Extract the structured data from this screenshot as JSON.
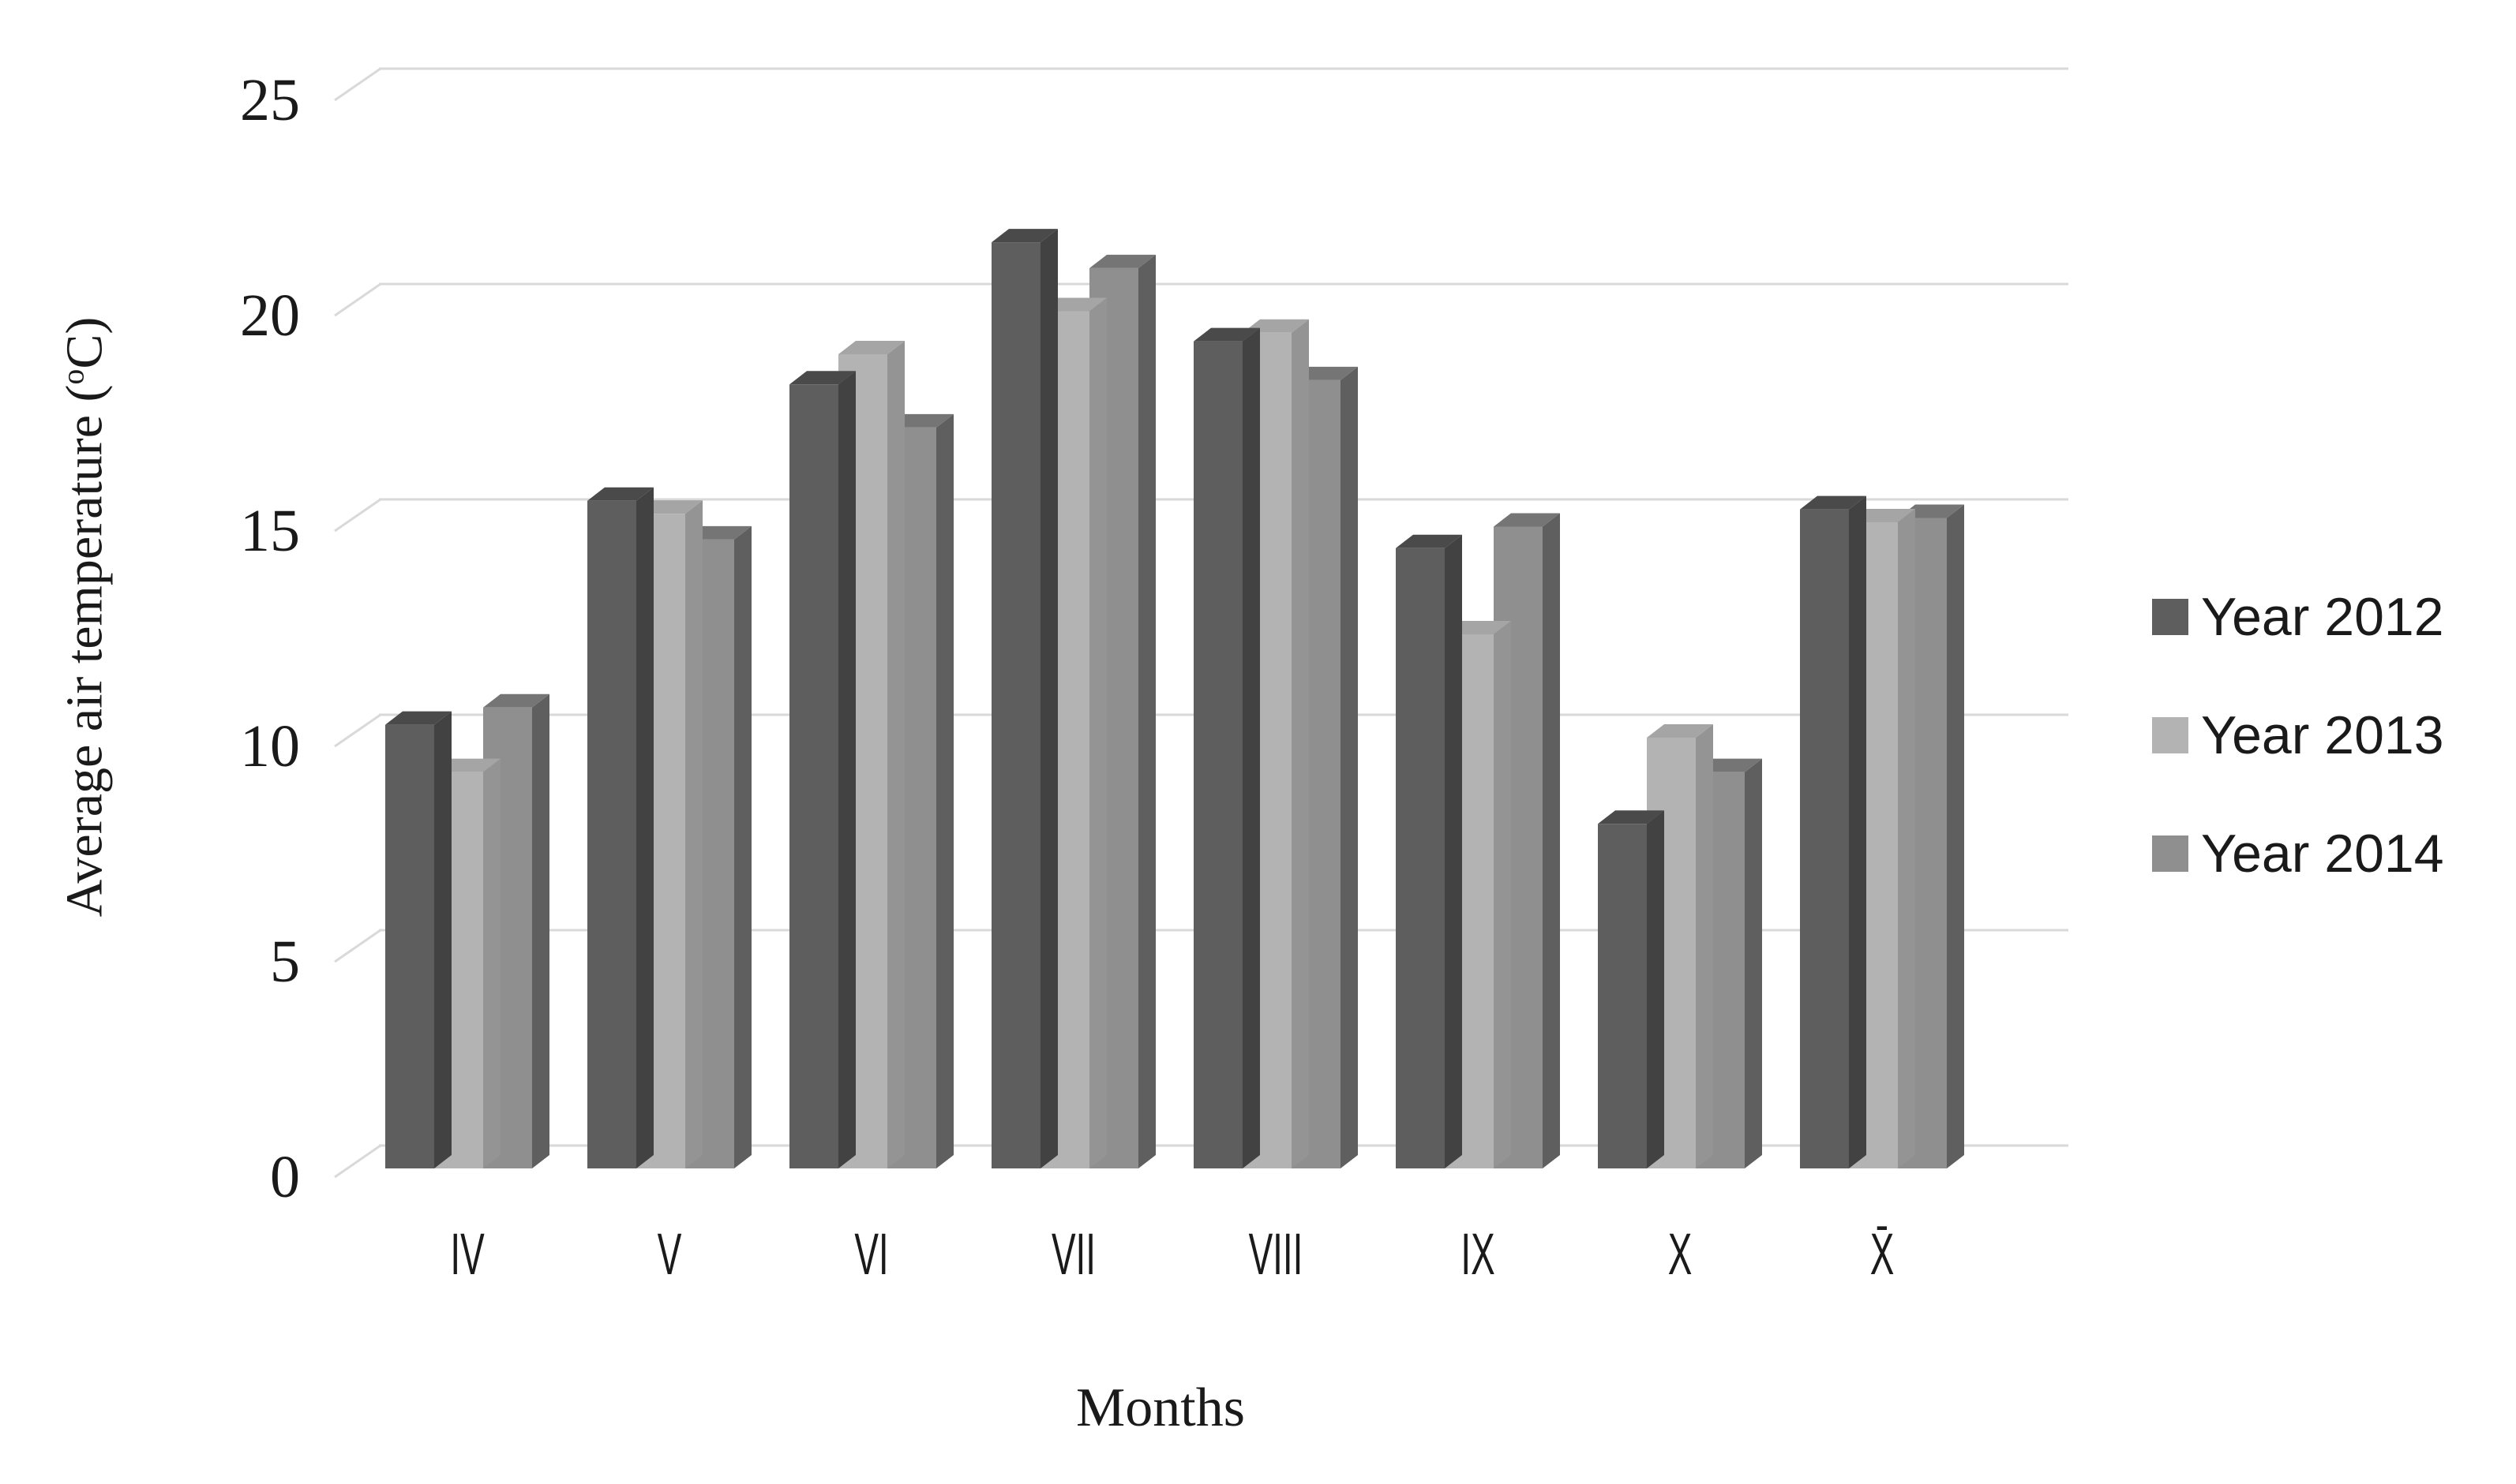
{
  "chart_data": {
    "type": "bar",
    "style": "3d-clustered-column",
    "categories": [
      "IV",
      "V",
      "VI",
      "VII",
      "VIII",
      "IX",
      "X",
      "X̄"
    ],
    "series": [
      {
        "name": "Year 2012",
        "values": [
          10.3,
          15.5,
          18.2,
          21.5,
          19.2,
          14.4,
          8.0,
          15.3
        ],
        "color": "#5E5E5E",
        "side_color": "#424242",
        "top_color": "#4A4A4A"
      },
      {
        "name": "Year 2013",
        "values": [
          9.2,
          15.2,
          18.9,
          19.9,
          19.4,
          12.4,
          10.0,
          15.0
        ],
        "color": "#B3B3B3",
        "side_color": "#949494",
        "top_color": "#A5A5A5"
      },
      {
        "name": "Year 2014",
        "values": [
          10.7,
          14.6,
          17.2,
          20.9,
          18.3,
          14.9,
          9.2,
          15.1
        ],
        "color": "#8F8F8F",
        "side_color": "#5F5F5F",
        "top_color": "#757575"
      }
    ],
    "xlabel": "Months",
    "ylabel": {
      "before_sup": "Average air temperature (",
      "sup": "o",
      "after_sup": "C)"
    },
    "yticks": [
      0,
      5,
      10,
      15,
      20,
      25
    ],
    "ylim": [
      0,
      25
    ],
    "grid": true,
    "gridline_color": "#D9D9D9",
    "text_color": "#1A1A1A",
    "legend_position": "right",
    "background": "#FFFFFF"
  }
}
